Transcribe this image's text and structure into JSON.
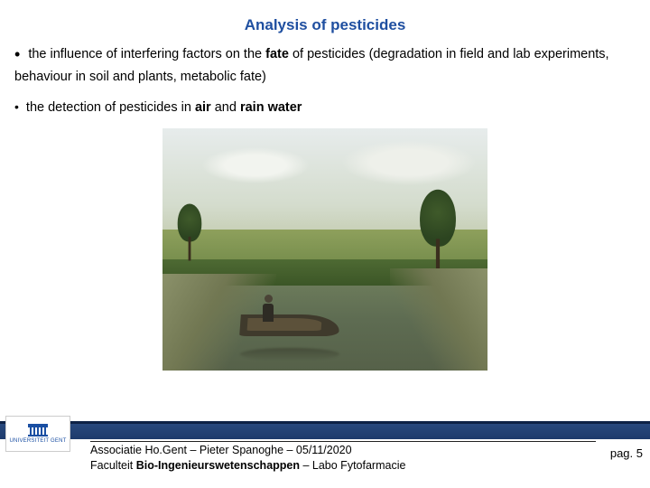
{
  "title": {
    "text": "Analysis of pesticides",
    "color": "#1f4fa0",
    "fontsize": 17
  },
  "bullets": [
    {
      "style": "dot",
      "parts": [
        {
          "text": " the influence of interfering factors on the ",
          "bold": false
        },
        {
          "text": "fate",
          "bold": true
        },
        {
          "text": " of pesticides (degradation in field and lab experiments, behaviour in soil and plants, metabolic fate)",
          "bold": false
        }
      ]
    },
    {
      "style": "smalldot",
      "parts": [
        {
          "text": " the detection of pesticides in ",
          "bold": false
        },
        {
          "text": "air",
          "bold": true
        },
        {
          "text": " and ",
          "bold": false
        },
        {
          "text": "rain water",
          "bold": true
        }
      ]
    }
  ],
  "painting": {
    "description": "Impressionist landscape: sky with clouds, green field, trees, river with a person in a small boat",
    "sky_colors": [
      "#e7ecec",
      "#d4dccd",
      "#c5cdb2"
    ],
    "field_colors": [
      "#8ea05c",
      "#768d4c",
      "#5f7b3e"
    ],
    "water_colors": [
      "#6b7a5a",
      "#5e6c52",
      "#566149"
    ],
    "tree_color": "#3f5a2a",
    "boat_color": "#3f3a2c"
  },
  "footer": {
    "bar_color": "#1d3a6c",
    "logo_label": "UNIVERSITEIT GENT",
    "line1_parts": [
      {
        "text": "Associatie Ho.Gent – Pieter Spanoghe – 05/11/2020",
        "bold": false
      }
    ],
    "line2_parts": [
      {
        "text": "Faculteit ",
        "bold": false
      },
      {
        "text": "Bio-Ingenieurswetenschappen",
        "bold": true
      },
      {
        "text": " – Labo Fytofarmacie",
        "bold": false
      }
    ],
    "page_label": "pag. 5"
  }
}
